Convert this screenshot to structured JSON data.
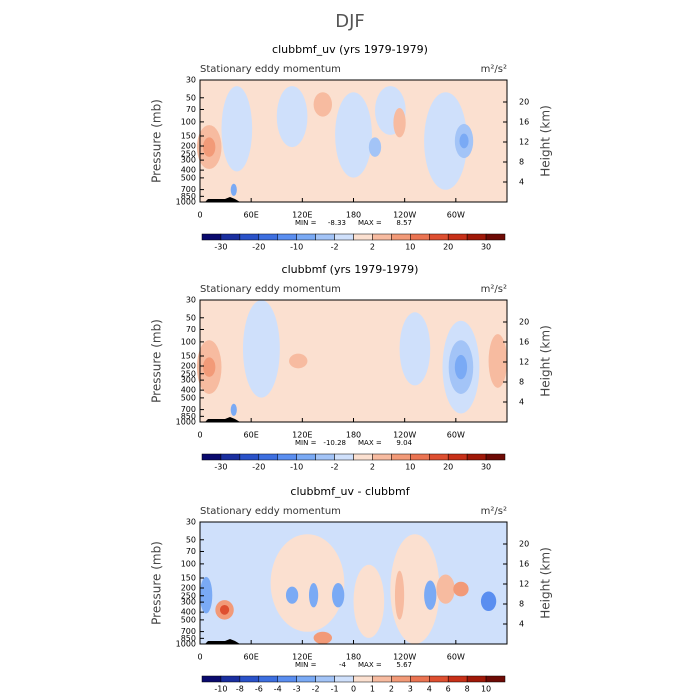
{
  "title": "DJF",
  "chart_data": [
    {
      "type": "contour",
      "title": "clubbmf_uv (yrs 1979-1979)",
      "subtitle": "Stationary eddy momentum",
      "units": "m²/s²",
      "xlim": [
        0,
        360
      ],
      "xticks": [
        0,
        {
          "value": 60,
          "label": "60E"
        },
        {
          "value": 120,
          "label": "120E"
        },
        180,
        {
          "value": 240,
          "label": "120W"
        },
        {
          "value": 300,
          "label": "60W"
        }
      ],
      "ylabel": "Pressure (mb)",
      "log_y": true,
      "ylim": [
        1000,
        30
      ],
      "yticks": [
        30,
        50,
        70,
        100,
        150,
        200,
        250,
        300,
        400,
        500,
        700,
        850,
        1000
      ],
      "y2label": "Height (km)",
      "y2lim": [
        0,
        24.4
      ],
      "y2ticks": [
        4,
        8,
        12,
        16,
        20
      ],
      "min_label": "MIN =",
      "min": -8.33,
      "max_label": "MAX =",
      "max": 8.57,
      "colorbar": {
        "colors": [
          "#0a0a6e",
          "#1a2fa0",
          "#2a52c9",
          "#3d6fe0",
          "#5a8ef0",
          "#7aaaf5",
          "#a3c4f7",
          "#cfe0fb",
          "#fbe0d0",
          "#f7bba0",
          "#f29a78",
          "#eb7452",
          "#de4f30",
          "#c83018",
          "#a01808",
          "#6e0a05"
        ],
        "ticks": [
          -30,
          -20,
          -10,
          -2,
          2,
          10,
          20,
          30
        ]
      }
    },
    {
      "type": "contour",
      "title": "clubbmf (yrs 1979-1979)",
      "subtitle": "Stationary eddy momentum",
      "units": "m²/s²",
      "xlim": [
        0,
        360
      ],
      "xticks": [
        0,
        {
          "value": 60,
          "label": "60E"
        },
        {
          "value": 120,
          "label": "120E"
        },
        180,
        {
          "value": 240,
          "label": "120W"
        },
        {
          "value": 300,
          "label": "60W"
        }
      ],
      "ylabel": "Pressure (mb)",
      "log_y": true,
      "ylim": [
        1000,
        30
      ],
      "yticks": [
        30,
        50,
        70,
        100,
        150,
        200,
        250,
        300,
        400,
        500,
        700,
        850,
        1000
      ],
      "y2label": "Height (km)",
      "y2lim": [
        0,
        24.4
      ],
      "y2ticks": [
        4,
        8,
        12,
        16,
        20
      ],
      "min_label": "MIN =",
      "min": -10.28,
      "max_label": "MAX =",
      "max": 9.04,
      "colorbar": {
        "colors": [
          "#0a0a6e",
          "#1a2fa0",
          "#2a52c9",
          "#3d6fe0",
          "#5a8ef0",
          "#7aaaf5",
          "#a3c4f7",
          "#cfe0fb",
          "#fbe0d0",
          "#f7bba0",
          "#f29a78",
          "#eb7452",
          "#de4f30",
          "#c83018",
          "#a01808",
          "#6e0a05"
        ],
        "ticks": [
          -30,
          -20,
          -10,
          -2,
          2,
          10,
          20,
          30
        ]
      }
    },
    {
      "type": "contour",
      "title": "clubbmf_uv - clubbmf",
      "subtitle": "Stationary eddy momentum",
      "units": "m²/s²",
      "xlim": [
        0,
        360
      ],
      "xticks": [
        0,
        {
          "value": 60,
          "label": "60E"
        },
        {
          "value": 120,
          "label": "120E"
        },
        180,
        {
          "value": 240,
          "label": "120W"
        },
        {
          "value": 300,
          "label": "60W"
        }
      ],
      "ylabel": "Pressure (mb)",
      "log_y": true,
      "ylim": [
        1000,
        30
      ],
      "yticks": [
        30,
        50,
        70,
        100,
        150,
        200,
        250,
        300,
        400,
        500,
        700,
        850,
        1000
      ],
      "y2label": "Height (km)",
      "y2lim": [
        0,
        24.4
      ],
      "y2ticks": [
        4,
        8,
        12,
        16,
        20
      ],
      "min_label": "MIN =",
      "min": -4.0,
      "max_label": "MAX =",
      "max": 5.67,
      "colorbar": {
        "colors": [
          "#0a0a6e",
          "#1a2fa0",
          "#2a52c9",
          "#3d6fe0",
          "#5a8ef0",
          "#7aaaf5",
          "#a3c4f7",
          "#cfe0fb",
          "#fbe0d0",
          "#f7bba0",
          "#f29a78",
          "#eb7452",
          "#de4f30",
          "#c83018",
          "#a01808",
          "#6e0a05"
        ],
        "ticks": [
          -10,
          -8,
          -6,
          -4,
          -3,
          -2,
          -1,
          0,
          1,
          2,
          3,
          4,
          6,
          8,
          10
        ]
      }
    }
  ]
}
